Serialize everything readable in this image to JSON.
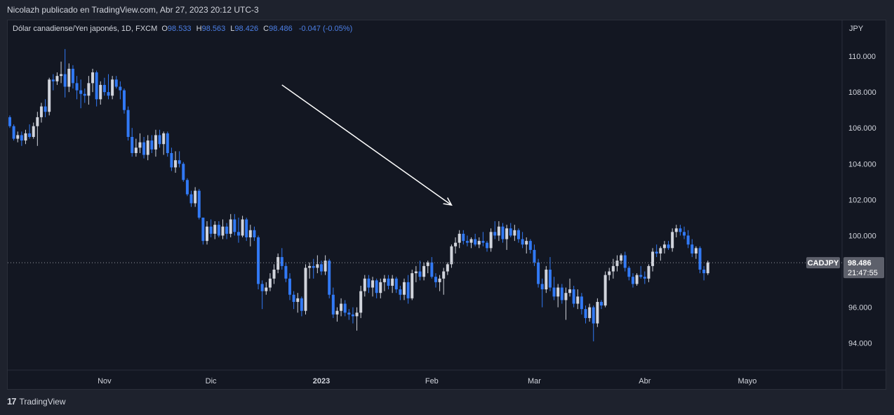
{
  "header": {
    "publisher_text": "Nicolazh publicado en TradingView.com, Abr 27, 2023 20:12 UTC-3"
  },
  "legend": {
    "instrument": "Dólar canadiense/Yen japonés, 1D, FXCM",
    "o_label": "O",
    "o_value": "98.533",
    "h_label": "H",
    "h_value": "98.563",
    "l_label": "L",
    "l_value": "98.426",
    "c_label": "C",
    "c_value": "98.486",
    "change": "-0.047 (-0.05%)"
  },
  "price_axis": {
    "currency": "JPY"
  },
  "price_tag": {
    "symbol": "CADJPY",
    "price": "98.486",
    "countdown": "21:47:55"
  },
  "footer": {
    "brand": "TradingView",
    "logo_glyph": "17"
  },
  "colors": {
    "background": "#131722",
    "frame": "#1e222d",
    "up": "#d1d4dc",
    "down": "#3179f5",
    "arrow": "#ffffff"
  },
  "chart_data": {
    "type": "candlestick",
    "title": "Dólar canadiense/Yen japonés, 1D, FXCM",
    "ylim": [
      92.5,
      112.0
    ],
    "y_ticks": [
      94,
      96,
      98,
      100,
      102,
      104,
      106,
      108,
      110
    ],
    "y_tick_labels": [
      "94.000",
      "96.000",
      "98.000",
      "100.000",
      "102.000",
      "104.000",
      "106.000",
      "108.000",
      "110.000"
    ],
    "x_tick_labels": [
      {
        "label": "Nov",
        "index": 24
      },
      {
        "label": "Dic",
        "index": 51
      },
      {
        "label": "2023",
        "index": 79
      },
      {
        "label": "Feb",
        "index": 107
      },
      {
        "label": "Mar",
        "index": 133
      },
      {
        "label": "Abr",
        "index": 161
      },
      {
        "label": "Mayo",
        "index": 187
      }
    ],
    "last_price": 98.486,
    "annotation": {
      "type": "arrow",
      "from": [
        69,
        108.4
      ],
      "to": [
        112,
        101.7
      ]
    },
    "candles": [
      [
        106.6,
        106.7,
        106.0,
        106.1
      ],
      [
        106.1,
        106.2,
        105.3,
        105.4
      ],
      [
        105.4,
        105.8,
        105.2,
        105.6
      ],
      [
        105.6,
        105.8,
        105.0,
        105.3
      ],
      [
        105.3,
        105.9,
        105.1,
        105.7
      ],
      [
        105.7,
        106.2,
        105.4,
        105.5
      ],
      [
        105.5,
        106.3,
        105.4,
        106.1
      ],
      [
        106.1,
        106.9,
        105.0,
        106.6
      ],
      [
        106.6,
        107.4,
        106.3,
        107.2
      ],
      [
        107.2,
        107.6,
        106.6,
        106.9
      ],
      [
        106.9,
        108.8,
        106.7,
        108.7
      ],
      [
        108.7,
        109.0,
        108.1,
        108.6
      ],
      [
        108.6,
        109.1,
        108.4,
        108.9
      ],
      [
        108.9,
        109.7,
        108.5,
        109.0
      ],
      [
        109.0,
        110.4,
        107.7,
        108.3
      ],
      [
        108.3,
        109.6,
        108.0,
        109.3
      ],
      [
        109.3,
        109.5,
        108.2,
        108.5
      ],
      [
        108.5,
        108.9,
        107.6,
        108.1
      ],
      [
        108.1,
        108.7,
        107.1,
        107.9
      ],
      [
        107.9,
        108.2,
        107.4,
        107.8
      ],
      [
        107.8,
        108.9,
        107.3,
        108.5
      ],
      [
        108.5,
        109.3,
        108.0,
        109.1
      ],
      [
        109.1,
        109.2,
        107.2,
        107.6
      ],
      [
        107.6,
        108.6,
        107.3,
        108.4
      ],
      [
        108.4,
        108.8,
        107.8,
        108.0
      ],
      [
        108.0,
        109.0,
        107.6,
        107.8
      ],
      [
        107.8,
        108.9,
        107.6,
        108.7
      ],
      [
        108.7,
        108.9,
        108.2,
        108.3
      ],
      [
        108.3,
        108.6,
        107.6,
        108.1
      ],
      [
        108.1,
        108.2,
        106.8,
        107.0
      ],
      [
        107.0,
        107.2,
        105.3,
        105.5
      ],
      [
        105.5,
        106.0,
        104.4,
        104.6
      ],
      [
        104.6,
        105.4,
        104.4,
        104.9
      ],
      [
        104.9,
        105.7,
        104.6,
        105.2
      ],
      [
        105.2,
        105.5,
        104.3,
        104.5
      ],
      [
        104.5,
        105.6,
        104.2,
        105.3
      ],
      [
        105.3,
        105.6,
        104.6,
        104.8
      ],
      [
        104.8,
        105.9,
        104.4,
        105.6
      ],
      [
        105.6,
        105.9,
        104.9,
        105.1
      ],
      [
        105.1,
        105.8,
        104.5,
        105.7
      ],
      [
        105.7,
        105.8,
        104.4,
        104.6
      ],
      [
        104.6,
        104.9,
        103.6,
        103.8
      ],
      [
        103.8,
        104.7,
        103.5,
        104.2
      ],
      [
        104.2,
        104.7,
        103.8,
        104.0
      ],
      [
        104.0,
        104.1,
        103.0,
        103.1
      ],
      [
        103.1,
        103.2,
        102.2,
        102.3
      ],
      [
        102.3,
        102.5,
        101.6,
        101.8
      ],
      [
        101.8,
        102.7,
        101.6,
        102.5
      ],
      [
        102.5,
        102.6,
        100.9,
        101.0
      ],
      [
        101.0,
        101.0,
        99.5,
        99.7
      ],
      [
        99.7,
        100.8,
        99.5,
        100.5
      ],
      [
        100.5,
        100.9,
        99.9,
        100.1
      ],
      [
        100.1,
        100.8,
        99.8,
        100.6
      ],
      [
        100.6,
        100.8,
        99.9,
        100.0
      ],
      [
        100.0,
        100.9,
        99.8,
        100.5
      ],
      [
        100.5,
        100.7,
        99.8,
        100.1
      ],
      [
        100.1,
        101.2,
        99.9,
        100.9
      ],
      [
        100.9,
        101.2,
        100.0,
        100.2
      ],
      [
        100.2,
        101.0,
        99.6,
        100.0
      ],
      [
        100.0,
        101.1,
        99.9,
        100.9
      ],
      [
        100.9,
        101.0,
        99.7,
        99.9
      ],
      [
        99.9,
        100.6,
        99.4,
        100.3
      ],
      [
        100.3,
        100.5,
        99.7,
        99.9
      ],
      [
        99.9,
        100.0,
        97.0,
        97.3
      ],
      [
        97.3,
        97.5,
        95.9,
        96.9
      ],
      [
        96.9,
        97.4,
        96.7,
        97.1
      ],
      [
        97.1,
        97.9,
        96.9,
        97.6
      ],
      [
        97.6,
        98.4,
        97.3,
        98.1
      ],
      [
        98.1,
        99.0,
        97.9,
        98.8
      ],
      [
        98.8,
        99.3,
        98.1,
        98.3
      ],
      [
        98.3,
        98.5,
        97.4,
        97.6
      ],
      [
        97.6,
        97.9,
        96.4,
        96.7
      ],
      [
        96.7,
        96.9,
        95.9,
        96.3
      ],
      [
        96.3,
        96.8,
        95.7,
        96.5
      ],
      [
        96.5,
        96.6,
        95.5,
        95.8
      ],
      [
        95.8,
        98.4,
        95.6,
        98.2
      ],
      [
        98.2,
        98.5,
        97.6,
        98.3
      ],
      [
        98.3,
        98.7,
        97.6,
        98.2
      ],
      [
        98.2,
        98.9,
        97.9,
        98.4
      ],
      [
        98.4,
        98.6,
        97.8,
        98.0
      ],
      [
        98.0,
        98.9,
        97.8,
        98.6
      ],
      [
        98.6,
        98.7,
        96.5,
        96.7
      ],
      [
        96.7,
        97.1,
        95.4,
        95.6
      ],
      [
        95.6,
        96.0,
        95.2,
        95.8
      ],
      [
        95.8,
        96.5,
        95.5,
        96.2
      ],
      [
        96.2,
        96.4,
        95.5,
        95.7
      ],
      [
        95.7,
        95.9,
        95.3,
        95.6
      ],
      [
        95.6,
        96.0,
        95.1,
        95.5
      ],
      [
        95.5,
        96.0,
        94.7,
        95.7
      ],
      [
        95.7,
        97.2,
        95.4,
        96.9
      ],
      [
        96.9,
        97.8,
        96.6,
        97.6
      ],
      [
        97.6,
        97.8,
        96.8,
        97.1
      ],
      [
        97.1,
        97.7,
        96.6,
        97.5
      ],
      [
        97.5,
        97.6,
        96.5,
        96.8
      ],
      [
        96.8,
        97.6,
        96.5,
        97.4
      ],
      [
        97.4,
        97.8,
        96.9,
        97.6
      ],
      [
        97.6,
        97.8,
        97.0,
        97.2
      ],
      [
        97.2,
        97.8,
        96.8,
        97.6
      ],
      [
        97.6,
        97.7,
        96.8,
        97.0
      ],
      [
        97.0,
        97.2,
        96.4,
        96.7
      ],
      [
        96.7,
        97.6,
        96.4,
        97.4
      ],
      [
        97.4,
        97.8,
        96.2,
        96.5
      ],
      [
        96.5,
        98.1,
        96.4,
        97.9
      ],
      [
        97.9,
        98.3,
        97.4,
        98.0
      ],
      [
        98.0,
        98.6,
        97.5,
        97.7
      ],
      [
        97.7,
        98.5,
        97.5,
        98.3
      ],
      [
        98.3,
        98.6,
        97.9,
        98.5
      ],
      [
        98.5,
        98.8,
        97.6,
        97.7
      ],
      [
        97.7,
        97.9,
        97.1,
        97.4
      ],
      [
        97.4,
        97.8,
        96.9,
        97.6
      ],
      [
        97.6,
        98.2,
        96.7,
        98.0
      ],
      [
        98.0,
        98.5,
        97.8,
        98.4
      ],
      [
        98.4,
        99.5,
        98.2,
        99.4
      ],
      [
        99.4,
        99.9,
        99.0,
        99.6
      ],
      [
        99.6,
        100.3,
        99.3,
        100.1
      ],
      [
        100.1,
        100.3,
        99.5,
        99.7
      ],
      [
        99.7,
        100.0,
        99.4,
        99.6
      ],
      [
        99.6,
        99.9,
        99.3,
        99.8
      ],
      [
        99.8,
        100.1,
        99.4,
        99.5
      ],
      [
        99.5,
        99.9,
        99.3,
        99.7
      ],
      [
        99.7,
        100.2,
        99.4,
        99.6
      ],
      [
        99.6,
        99.7,
        99.1,
        99.3
      ],
      [
        99.3,
        100.4,
        99.1,
        100.2
      ],
      [
        100.2,
        100.8,
        99.8,
        100.0
      ],
      [
        100.0,
        100.8,
        99.7,
        100.5
      ],
      [
        100.5,
        100.7,
        99.6,
        99.8
      ],
      [
        99.8,
        100.6,
        99.2,
        100.4
      ],
      [
        100.4,
        100.7,
        99.9,
        100.0
      ],
      [
        100.0,
        100.6,
        99.7,
        100.3
      ],
      [
        100.3,
        100.4,
        99.6,
        99.8
      ],
      [
        99.8,
        100.2,
        99.3,
        99.5
      ],
      [
        99.5,
        99.9,
        99.0,
        99.7
      ],
      [
        99.7,
        99.8,
        99.0,
        99.2
      ],
      [
        99.2,
        99.5,
        98.3,
        98.5
      ],
      [
        98.5,
        98.7,
        97.1,
        97.3
      ],
      [
        97.3,
        97.6,
        96.0,
        97.0
      ],
      [
        97.0,
        98.3,
        96.8,
        98.1
      ],
      [
        98.1,
        98.8,
        96.9,
        97.1
      ],
      [
        97.1,
        97.7,
        96.4,
        96.6
      ],
      [
        96.6,
        97.3,
        96.0,
        97.1
      ],
      [
        97.1,
        97.3,
        96.2,
        96.4
      ],
      [
        96.4,
        97.1,
        95.3,
        96.8
      ],
      [
        96.8,
        97.6,
        96.6,
        97.0
      ],
      [
        97.0,
        97.2,
        96.0,
        96.2
      ],
      [
        96.2,
        97.0,
        95.9,
        96.6
      ],
      [
        96.6,
        96.8,
        95.6,
        95.9
      ],
      [
        95.9,
        96.1,
        95.1,
        95.4
      ],
      [
        95.4,
        96.2,
        95.2,
        96.0
      ],
      [
        96.0,
        96.1,
        94.1,
        95.1
      ],
      [
        95.1,
        96.5,
        94.9,
        96.3
      ],
      [
        96.3,
        96.4,
        95.9,
        96.1
      ],
      [
        96.1,
        98.0,
        96.0,
        97.8
      ],
      [
        97.8,
        98.2,
        97.5,
        98.0
      ],
      [
        98.0,
        98.7,
        97.6,
        98.3
      ],
      [
        98.3,
        98.9,
        98.0,
        98.6
      ],
      [
        98.6,
        99.0,
        98.4,
        98.9
      ],
      [
        98.9,
        99.1,
        98.0,
        98.2
      ],
      [
        98.2,
        98.3,
        97.5,
        97.7
      ],
      [
        97.7,
        97.9,
        97.1,
        97.3
      ],
      [
        97.3,
        97.9,
        97.2,
        97.8
      ],
      [
        97.8,
        98.3,
        97.6,
        97.7
      ],
      [
        97.7,
        98.0,
        97.3,
        97.6
      ],
      [
        97.6,
        98.4,
        97.4,
        98.3
      ],
      [
        98.3,
        99.3,
        98.0,
        99.1
      ],
      [
        99.1,
        99.5,
        98.8,
        99.0
      ],
      [
        99.0,
        99.4,
        98.6,
        99.3
      ],
      [
        99.3,
        99.7,
        99.0,
        99.5
      ],
      [
        99.5,
        99.7,
        99.2,
        99.3
      ],
      [
        99.3,
        100.4,
        99.1,
        100.2
      ],
      [
        100.2,
        100.6,
        99.9,
        100.4
      ],
      [
        100.4,
        100.6,
        100.0,
        100.2
      ],
      [
        100.2,
        100.5,
        99.8,
        100.0
      ],
      [
        100.0,
        100.3,
        99.3,
        99.5
      ],
      [
        99.5,
        99.8,
        98.8,
        99.0
      ],
      [
        99.0,
        99.4,
        98.7,
        99.3
      ],
      [
        99.3,
        99.4,
        97.9,
        98.1
      ],
      [
        98.1,
        98.3,
        97.5,
        97.9
      ],
      [
        97.9,
        98.6,
        97.8,
        98.5
      ]
    ]
  }
}
